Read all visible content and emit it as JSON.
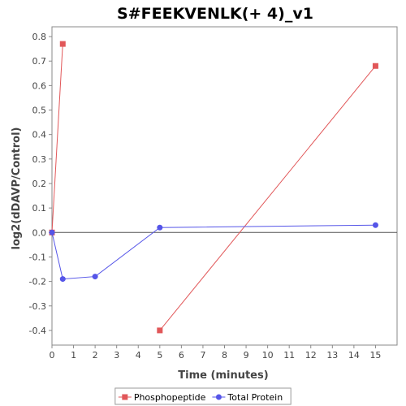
{
  "chart_data": {
    "type": "line",
    "title": "S#FEEKVENLK(+ 4)_v1",
    "xlabel": "Time (minutes)",
    "ylabel": "log2(dDAVP/Control)",
    "xlim": [
      0,
      16
    ],
    "ylim": [
      -0.46,
      0.84
    ],
    "xticks": [
      0,
      1,
      2,
      3,
      4,
      5,
      6,
      7,
      8,
      9,
      10,
      11,
      12,
      13,
      14,
      15
    ],
    "yticks": [
      -0.4,
      -0.3,
      -0.2,
      -0.1,
      0.0,
      0.1,
      0.2,
      0.3,
      0.4,
      0.5,
      0.6,
      0.7,
      0.8
    ],
    "ytick_labels": [
      "-0.4",
      "-0.3",
      "-0.2",
      "-0.1",
      "0.0",
      "0.1",
      "0.2",
      "0.3",
      "0.4",
      "0.5",
      "0.6",
      "0.7",
      "0.8"
    ],
    "zero_line": true,
    "grid": false,
    "legend_position": "bottom-center",
    "series": [
      {
        "name": "Phosphopeptide",
        "color": "#e15759",
        "marker": "square",
        "segments": [
          [
            {
              "x": 0,
              "y": 0.0
            },
            {
              "x": 0.5,
              "y": 0.77
            }
          ],
          [
            {
              "x": 5,
              "y": -0.4
            },
            {
              "x": 15,
              "y": 0.68
            }
          ]
        ]
      },
      {
        "name": "Total Protein",
        "color": "#5555e8",
        "marker": "circle",
        "segments": [
          [
            {
              "x": 0,
              "y": 0.0
            },
            {
              "x": 0.5,
              "y": -0.19
            },
            {
              "x": 2,
              "y": -0.18
            },
            {
              "x": 5,
              "y": 0.02
            },
            {
              "x": 15,
              "y": 0.03
            }
          ]
        ]
      }
    ]
  }
}
